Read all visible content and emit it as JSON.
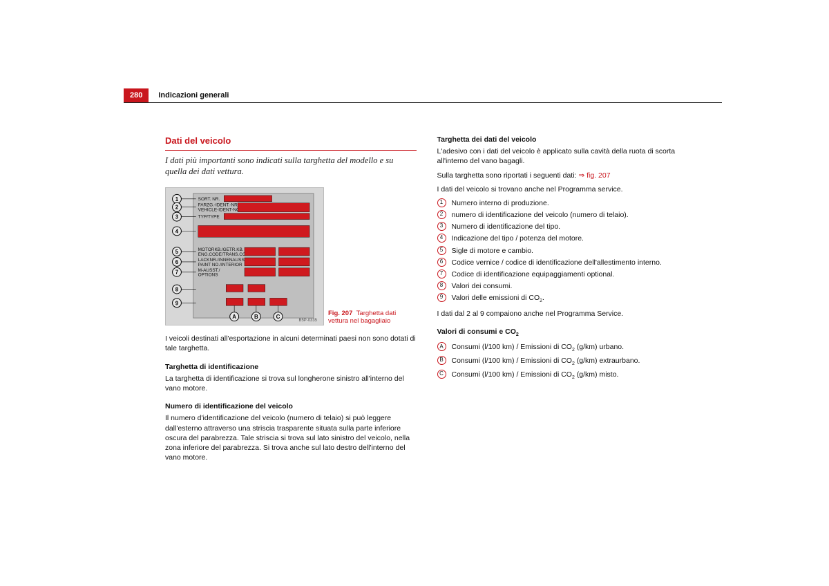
{
  "header": {
    "page_number": "280",
    "section_title": "Indicazioni generali",
    "accent_color": "#c9161d"
  },
  "left": {
    "title": "Dati del veicolo",
    "lede": "I dati più importanti sono indicati sulla targhetta del modello e su quella dei dati vettura.",
    "figure": {
      "caption_prefix": "Fig. 207",
      "caption_body": "Targhetta dati vettura nel bagagliaio",
      "labels_left": [
        "SORT. NR.",
        "FARZG.-IDENT.-NR.\nVEHICLE-IDENT-NO.",
        "TYP/TYPE",
        "",
        "MOTORKB./GETR.KB.\nENG.CODE/TRANS.CODE",
        "LACKNR./INNENAUSST.\nPAINT NO./INTERIOR",
        "M-AUSST./\nOPTIONS",
        "",
        ""
      ],
      "numbers": [
        "1",
        "2",
        "3",
        "4",
        "5",
        "6",
        "7",
        "8",
        "9"
      ],
      "letters": [
        "A",
        "B",
        "C"
      ],
      "code": "B5P-0335",
      "background": "#d7d7d7",
      "bar_color": "#cf1a1f",
      "circle_border": "#000000"
    },
    "p1": "I veicoli destinati all'esportazione in alcuni determinati paesi non sono dotati di tale targhetta.",
    "h1": "Targhetta di identificazione",
    "p2": "La targhetta di identificazione si trova sul longherone sinistro all'interno del vano motore.",
    "h2": "Numero di identificazione del veicolo",
    "p3": "Il numero d'identificazione del veicolo (numero di telaio) si può leggere dall'esterno attraverso una striscia trasparente situata sulla parte inferiore oscura del parabrezza. Tale striscia si trova sul lato sinistro del veicolo, nella zona inferiore del parabrezza. Si trova anche sul lato destro dell'interno del vano motore."
  },
  "right": {
    "h1": "Targhetta dei dati del veicolo",
    "p1": "L'adesivo con i dati del veicolo è applicato sulla cavità della ruota di scorta all'interno del vano bagagli.",
    "p2a": "Sulla targhetta sono riportati i seguenti dati: ",
    "p2b": "⇒ fig. 207",
    "p3": "I dati del veicolo si trovano anche nel Programma service.",
    "legend_num": [
      "Numero interno di produzione.",
      "numero di identificazione del veicolo (numero di telaio).",
      "Numero di identificazione del tipo.",
      "Indicazione del tipo / potenza del motore.",
      "Sigle di motore e cambio.",
      "Codice vernice / codice di identificazione dell'allestimento interno.",
      "Codice di identificazione equipaggiamenti optional.",
      "Valori dei consumi.",
      "Valori delle emissioni di CO"
    ],
    "p4": "I dati dal 2 al 9 compaiono anche nel Programma Service.",
    "h2": "Valori di consumi e CO",
    "legend_alpha_labels": [
      "A",
      "B",
      "C"
    ],
    "legend_alpha": [
      "Consumi (l/100 km) / Emissioni di CO",
      "Consumi (l/100 km) / Emissioni di CO",
      "Consumi (l/100 km) / Emissioni di CO"
    ],
    "legend_alpha_suffix": [
      " (g/km) urbano.",
      " (g/km) extraurbano.",
      " (g/km) misto."
    ]
  }
}
